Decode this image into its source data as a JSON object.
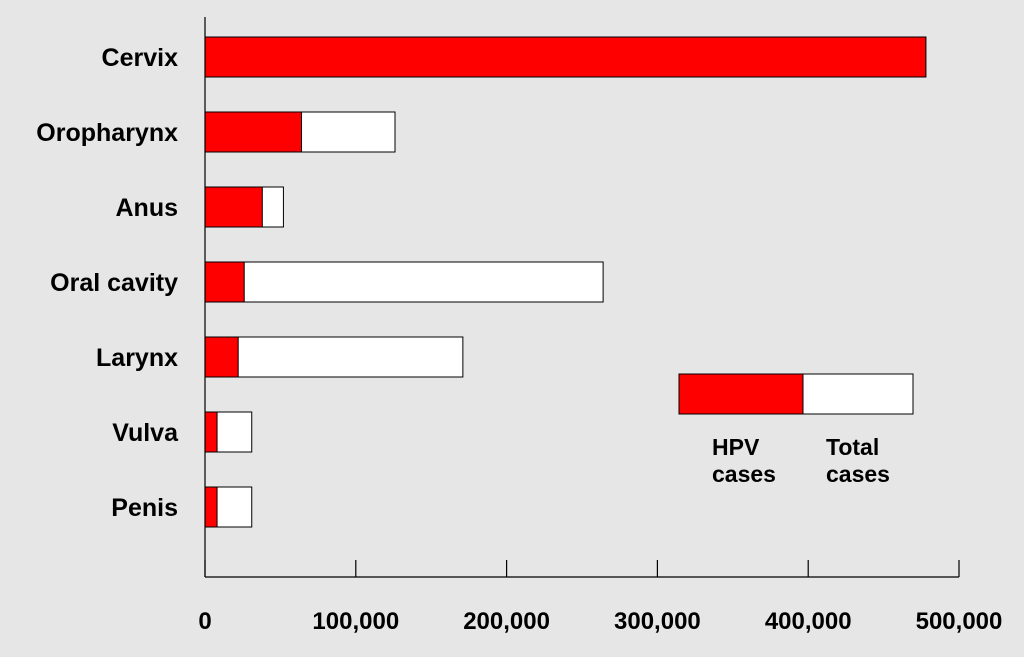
{
  "chart_data": {
    "type": "bar",
    "orientation": "horizontal",
    "stacked_overlay": true,
    "categories": [
      "Cervix",
      "Oropharynx",
      "Anus",
      "Oral cavity",
      "Larynx",
      "Vulva",
      "Penis"
    ],
    "series": [
      {
        "name": "HPV cases",
        "values": [
          478000,
          64000,
          38000,
          26000,
          22000,
          8000,
          8000
        ],
        "color": "#ff0000"
      },
      {
        "name": "Total cases",
        "values": [
          478000,
          126000,
          52000,
          264000,
          171000,
          31000,
          31000
        ],
        "color": "#ffffff"
      }
    ],
    "xlim": [
      0,
      500000
    ],
    "xticks": [
      0,
      100000,
      200000,
      300000,
      400000,
      500000
    ],
    "xtick_labels": [
      "0",
      "100,000",
      "200,000",
      "300,000",
      "400,000",
      "500,000"
    ],
    "legend": {
      "placement": "center-right",
      "entries": [
        {
          "line1": "HPV",
          "line2": "cases"
        },
        {
          "line1": "Total",
          "line2": "cases"
        }
      ]
    },
    "grid": false,
    "background": "#e6e6e6"
  }
}
